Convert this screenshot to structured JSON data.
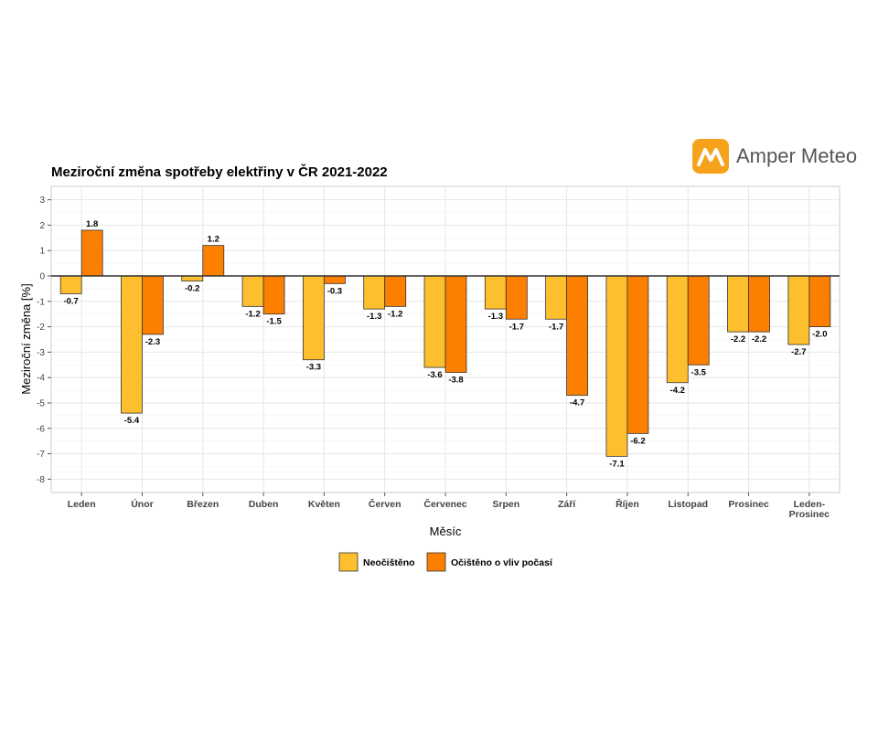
{
  "logo": {
    "text": "Amper Meteo",
    "icon": "amper-meteo-logo-icon",
    "color": "#f7a21b"
  },
  "chart_data": {
    "type": "bar",
    "title": "Meziroční změna spotřeby elektřiny v ČR 2021-2022",
    "xlabel": "Měsíc",
    "ylabel": "Meziroční změna [%]",
    "ylim": [
      -8.5,
      3.5
    ],
    "yticks": [
      3,
      2,
      1,
      0,
      -1,
      -2,
      -3,
      -4,
      -5,
      -6,
      -7,
      -8
    ],
    "grid": true,
    "legend_position": "bottom",
    "categories": [
      "Leden",
      "Únor",
      "Březen",
      "Duben",
      "Květen",
      "Červen",
      "Červenec",
      "Srpen",
      "Září",
      "Říjen",
      "Listopad",
      "Prosinec",
      "Leden-\nProsinec"
    ],
    "series": [
      {
        "name": "Neočištěno",
        "color": "#fdbf2d",
        "values": [
          -0.7,
          -5.4,
          -0.2,
          -1.2,
          -3.3,
          -1.3,
          -3.6,
          -1.3,
          -1.7,
          -7.1,
          -4.2,
          -2.2,
          -2.7
        ],
        "labels": [
          "-0.7",
          "-5.4",
          "-0.2",
          "-1.2",
          "-3.3",
          "-1.3",
          "-3.6",
          "-1.3",
          "-1.7",
          "-7.1",
          "-4.2",
          "-2.2",
          "-2.7"
        ]
      },
      {
        "name": "Očištěno o vliv počasí",
        "color": "#fd7f00",
        "values": [
          1.8,
          -2.3,
          1.2,
          -1.5,
          -0.3,
          -1.2,
          -3.8,
          -1.7,
          -4.7,
          -6.2,
          -3.5,
          -2.2,
          -2.0
        ],
        "labels": [
          "1.8",
          "-2.3",
          "1.2",
          "-1.5",
          "-0.3",
          "-1.2",
          "-3.8",
          "-1.7",
          "-4.7",
          "-6.2",
          "-3.5",
          "-2.2",
          "-2.0"
        ]
      }
    ]
  }
}
